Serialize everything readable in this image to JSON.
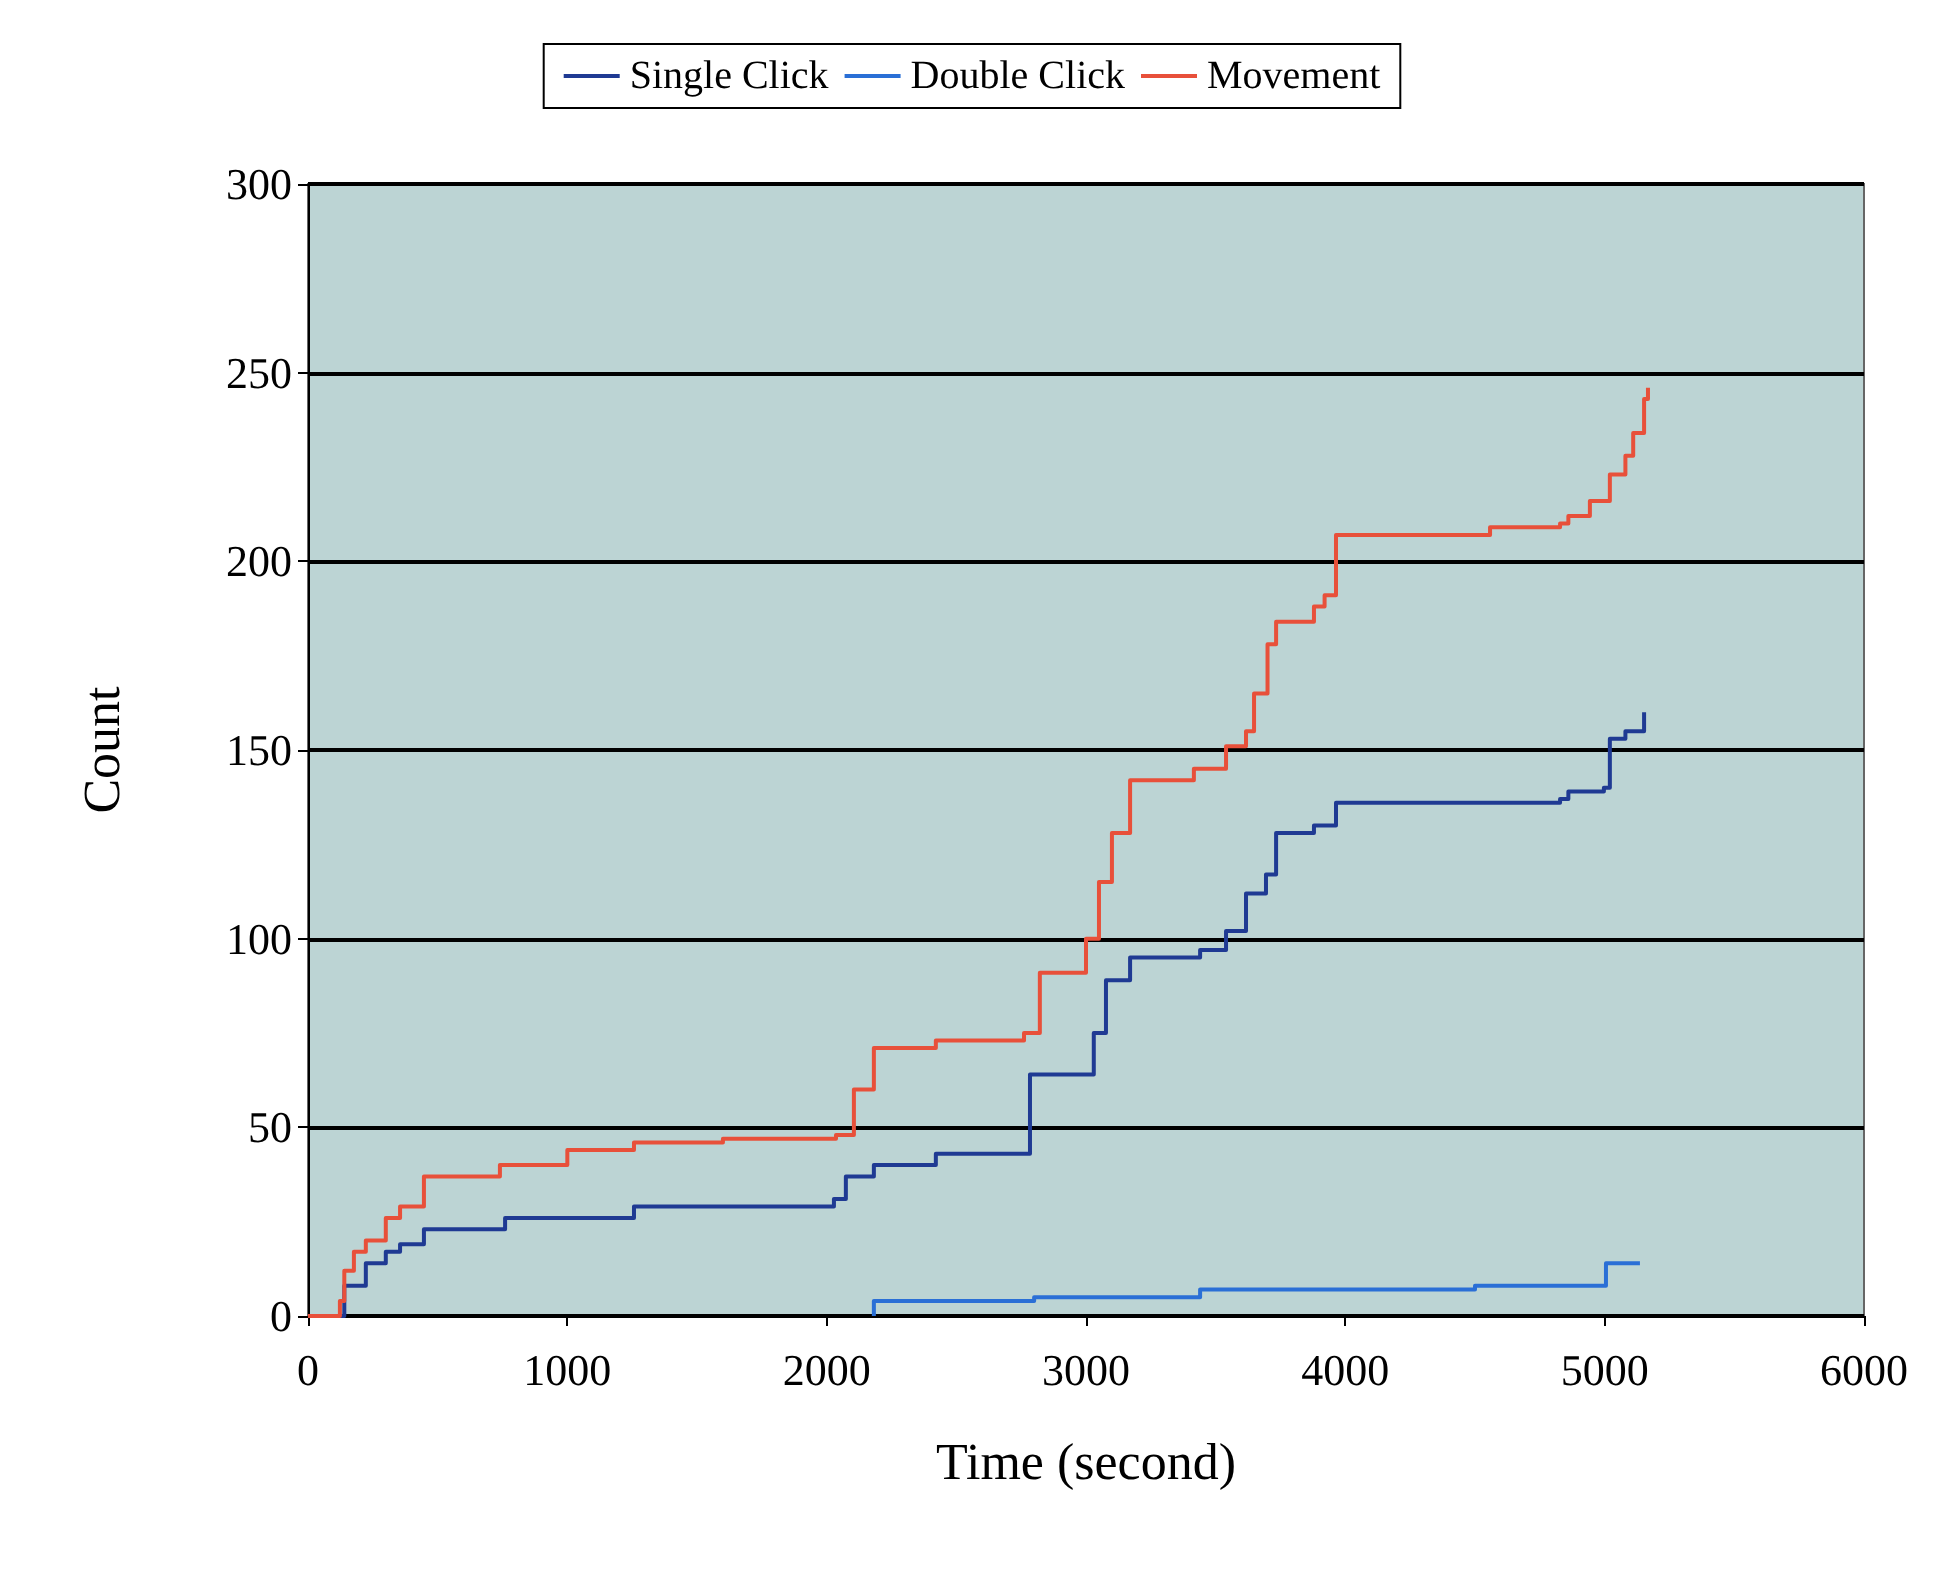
{
  "chart_data": {
    "type": "step",
    "xlabel": "Time (second)",
    "ylabel": "Count",
    "xlim": [
      0,
      6000
    ],
    "xticks": [
      0,
      1000,
      2000,
      3000,
      4000,
      5000,
      6000
    ],
    "ylim": [
      0,
      300
    ],
    "yticks": [
      0,
      50,
      100,
      150,
      200,
      250,
      300
    ],
    "grid": "y",
    "legend": "top",
    "marker": "none",
    "series": [
      {
        "name": "Single Click",
        "color": "#1f3a93",
        "x": [
          0,
          140,
          223,
          300,
          355,
          447,
          760,
          1257,
          2028,
          2074,
          2182,
          2421,
          2784,
          3030,
          3077,
          3170,
          3440,
          3540,
          3617,
          3694,
          3733,
          3879,
          3964,
          4828,
          4860,
          4997,
          5020,
          5080,
          5152
        ],
        "values": [
          0,
          8,
          14,
          17,
          19,
          23,
          26,
          29,
          31,
          37,
          40,
          43,
          64,
          75,
          89,
          95,
          97,
          102,
          112,
          117,
          128,
          130,
          136,
          137,
          139,
          140,
          153,
          155,
          160
        ]
      },
      {
        "name": "Double Click",
        "color": "#2a6fd6",
        "x": [
          2182,
          2182,
          2800,
          3440,
          4500,
          5005,
          5136
        ],
        "values": [
          0,
          4,
          5,
          7,
          8,
          14,
          14
        ]
      },
      {
        "name": "Movement",
        "color": "#e8503a",
        "x": [
          0,
          123,
          140,
          177,
          223,
          300,
          355,
          447,
          740,
          1000,
          1257,
          1600,
          2036,
          2105,
          2182,
          2421,
          2761,
          2822,
          3000,
          3050,
          3100,
          3170,
          3416,
          3540,
          3617,
          3648,
          3700,
          3733,
          3879,
          3920,
          3964,
          4558,
          4828,
          4860,
          4943,
          5020,
          5080,
          5110,
          5152,
          5167
        ],
        "values": [
          0,
          4,
          12,
          17,
          20,
          26,
          29,
          37,
          40,
          44,
          46,
          47,
          48,
          60,
          71,
          73,
          75,
          91,
          100,
          115,
          128,
          142,
          145,
          151,
          155,
          165,
          178,
          184,
          188,
          191,
          207,
          209,
          210,
          212,
          216,
          223,
          228,
          234,
          243,
          246
        ]
      }
    ]
  }
}
